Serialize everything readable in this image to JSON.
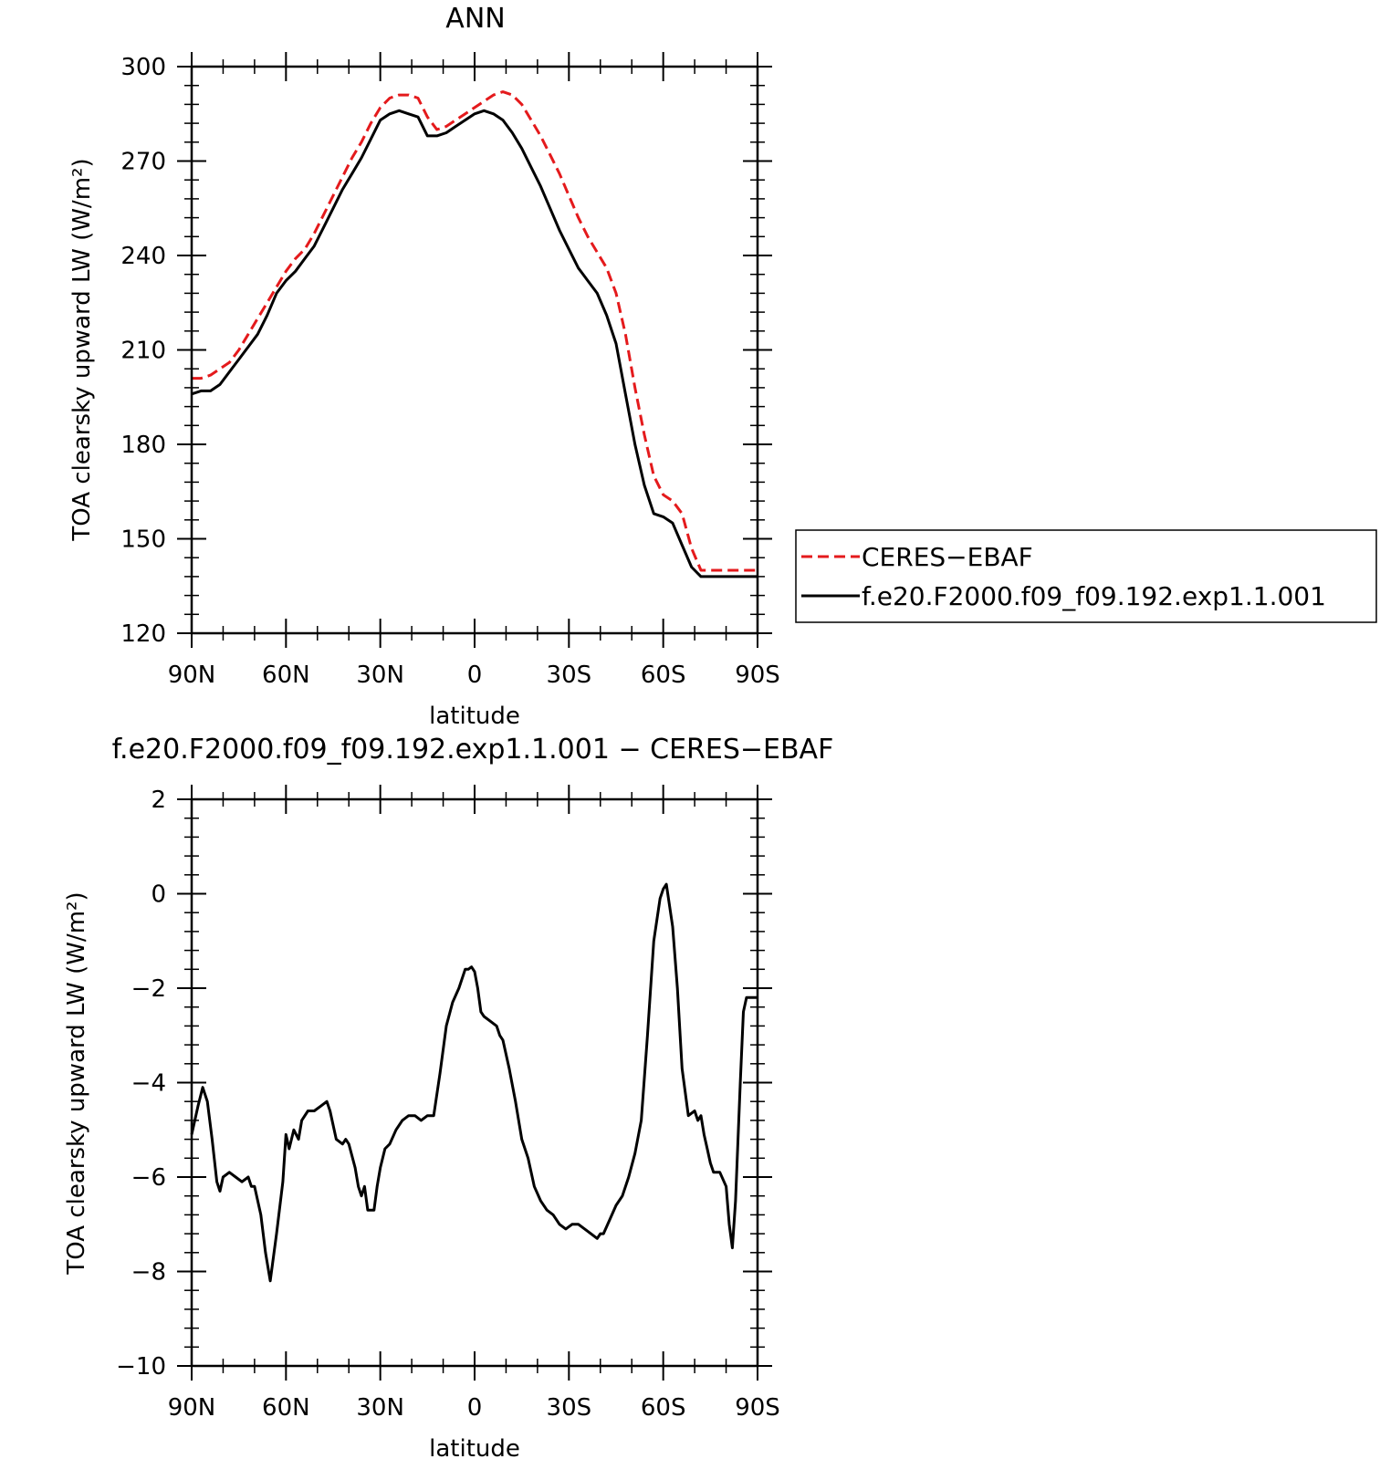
{
  "colors": {
    "obs": "#e41a1c",
    "model": "#000000"
  },
  "panels": {
    "top": {
      "title": "ANN",
      "ylabel": "TOA clearsky upward LW (W/m²)",
      "xlabel": "latitude"
    },
    "bottom": {
      "title": "f.e20.F2000.f09_f09.192.exp1.1.001 − CERES−EBAF",
      "ylabel": "TOA clearsky upward LW (W/m²)",
      "xlabel": "latitude"
    }
  },
  "legend": {
    "entries": [
      {
        "label": "CERES−EBAF",
        "style": "dashed",
        "color": "#e41a1c"
      },
      {
        "label": "f.e20.F2000.f09_f09.192.exp1.1.001",
        "style": "solid",
        "color": "#000000"
      }
    ],
    "placement": "right of top panel"
  },
  "chart_data": [
    {
      "type": "line",
      "title": "ANN",
      "xlabel": "latitude",
      "ylabel": "TOA clearsky upward LW (W/m²)",
      "xlim": [
        90,
        -90
      ],
      "ylim": [
        120,
        300
      ],
      "xticks": [
        {
          "v": 90,
          "label": "90N"
        },
        {
          "v": 60,
          "label": "60N"
        },
        {
          "v": 30,
          "label": "30N"
        },
        {
          "v": 0,
          "label": "0"
        },
        {
          "v": -30,
          "label": "30S"
        },
        {
          "v": -60,
          "label": "60S"
        },
        {
          "v": -90,
          "label": "90S"
        }
      ],
      "yticks": [
        120,
        150,
        180,
        210,
        240,
        270,
        300
      ],
      "x": [
        90,
        87,
        84,
        81,
        78,
        75,
        72,
        69,
        66,
        63,
        60,
        57,
        54,
        51,
        48,
        45,
        42,
        39,
        36,
        33,
        30,
        27,
        24,
        21,
        18,
        15,
        12,
        9,
        6,
        3,
        0,
        -3,
        -6,
        -9,
        -12,
        -15,
        -18,
        -21,
        -24,
        -27,
        -30,
        -33,
        -36,
        -39,
        -42,
        -45,
        -48,
        -51,
        -54,
        -57,
        -60,
        -63,
        -66,
        -69,
        -72,
        -75,
        -78,
        -81,
        -84,
        -87,
        -90
      ],
      "series": [
        {
          "name": "CERES−EBAF",
          "color": "#e41a1c",
          "style": "dashed",
          "values": [
            201,
            201,
            202,
            204,
            206,
            210,
            215,
            220,
            225,
            230,
            235,
            239,
            242,
            247,
            253,
            259,
            265,
            271,
            276,
            282,
            287,
            290,
            291,
            291,
            290,
            284,
            280,
            281,
            283,
            285,
            287,
            289,
            291,
            292,
            291,
            288,
            283,
            278,
            272,
            266,
            259,
            252,
            246,
            241,
            236,
            228,
            215,
            198,
            183,
            170,
            164,
            162,
            158,
            147,
            140,
            140,
            140,
            140,
            140,
            140,
            140
          ]
        },
        {
          "name": "f.e20.F2000.f09_f09.192.exp1.1.001",
          "color": "#000000",
          "style": "solid",
          "values": [
            196,
            197,
            197,
            199,
            203,
            207,
            211,
            215,
            221,
            228,
            232,
            235,
            239,
            243,
            249,
            255,
            261,
            266,
            271,
            277,
            283,
            285,
            286,
            285,
            284,
            278,
            278,
            279,
            281,
            283,
            285,
            286,
            285,
            283,
            279,
            274,
            268,
            262,
            255,
            248,
            242,
            236,
            232,
            228,
            221,
            212,
            196,
            180,
            167,
            158,
            157,
            155,
            148,
            141,
            138,
            138,
            138,
            138,
            138,
            138,
            138
          ]
        }
      ]
    },
    {
      "type": "line",
      "title": "f.e20.F2000.f09_f09.192.exp1.1.001 − CERES−EBAF",
      "xlabel": "latitude",
      "ylabel": "TOA clearsky upward LW (W/m²)",
      "xlim": [
        90,
        -90
      ],
      "ylim": [
        -10,
        2
      ],
      "xticks": [
        {
          "v": 90,
          "label": "90N"
        },
        {
          "v": 60,
          "label": "60N"
        },
        {
          "v": 30,
          "label": "30N"
        },
        {
          "v": 0,
          "label": "0"
        },
        {
          "v": -30,
          "label": "30S"
        },
        {
          "v": -60,
          "label": "60S"
        },
        {
          "v": -90,
          "label": "90S"
        }
      ],
      "yticks": [
        -10,
        -8,
        -6,
        -4,
        -2,
        0,
        2
      ],
      "x": [
        90,
        88,
        86.5,
        85,
        83.5,
        82,
        81,
        80,
        78,
        76,
        74,
        72,
        71,
        70,
        68,
        66.5,
        65,
        63,
        61,
        60,
        59,
        57.5,
        56,
        55,
        53,
        51,
        49,
        47,
        46,
        44,
        42,
        41,
        40,
        38,
        37,
        36,
        35,
        34,
        33,
        32,
        31,
        30,
        28.5,
        27,
        25,
        23,
        21,
        19,
        17,
        15,
        13,
        11,
        9,
        7,
        5,
        3,
        2,
        1,
        0,
        -1,
        -2,
        -3,
        -5,
        -7,
        -8,
        -9,
        -11,
        -13,
        -15,
        -17,
        -18,
        -19,
        -21,
        -23,
        -25,
        -27,
        -29,
        -31,
        -33,
        -35,
        -37,
        -39,
        -40,
        -41,
        -43,
        -45,
        -47,
        -49,
        -51,
        -53,
        -55,
        -57,
        -59,
        -60,
        -61,
        -63,
        -64.5,
        -66,
        -68,
        -70,
        -71,
        -72,
        -73,
        -74,
        -75,
        -76,
        -78,
        -80,
        -81,
        -82,
        -83,
        -84.5,
        -85.5,
        -86.5,
        -88,
        -89,
        -90
      ],
      "series": [
        {
          "name": "f.e20.F2000.f09_f09.192.exp1.1.001 − CERES−EBAF",
          "color": "#000000",
          "style": "solid",
          "values": [
            -5.1,
            -4.5,
            -4.1,
            -4.4,
            -5.2,
            -6.1,
            -6.3,
            -6.0,
            -5.9,
            -6.0,
            -6.1,
            -6.0,
            -6.2,
            -6.2,
            -6.8,
            -7.6,
            -8.2,
            -7.2,
            -6.1,
            -5.1,
            -5.4,
            -5.0,
            -5.2,
            -4.8,
            -4.6,
            -4.6,
            -4.5,
            -4.4,
            -4.6,
            -5.2,
            -5.3,
            -5.2,
            -5.3,
            -5.8,
            -6.2,
            -6.4,
            -6.2,
            -6.7,
            -6.7,
            -6.7,
            -6.2,
            -5.8,
            -5.4,
            -5.3,
            -5.0,
            -4.8,
            -4.7,
            -4.7,
            -4.8,
            -4.7,
            -4.7,
            -3.8,
            -2.8,
            -2.3,
            -2.0,
            -1.6,
            -1.6,
            -1.55,
            -1.65,
            -2.0,
            -2.5,
            -2.6,
            -2.7,
            -2.8,
            -3.0,
            -3.1,
            -3.7,
            -4.4,
            -5.2,
            -5.6,
            -5.9,
            -6.2,
            -6.5,
            -6.7,
            -6.8,
            -7.0,
            -7.1,
            -7.0,
            -7.0,
            -7.1,
            -7.2,
            -7.3,
            -7.2,
            -7.2,
            -6.9,
            -6.6,
            -6.4,
            -6.0,
            -5.5,
            -4.8,
            -3.0,
            -1.0,
            -0.1,
            0.1,
            0.2,
            -0.7,
            -2.0,
            -3.7,
            -4.7,
            -4.6,
            -4.8,
            -4.7,
            -5.1,
            -5.4,
            -5.7,
            -5.9,
            -5.9,
            -6.2,
            -7.0,
            -7.5,
            -6.5,
            -4.0,
            -2.5,
            -2.2,
            -2.2,
            -2.2,
            -2.2
          ]
        }
      ]
    }
  ]
}
